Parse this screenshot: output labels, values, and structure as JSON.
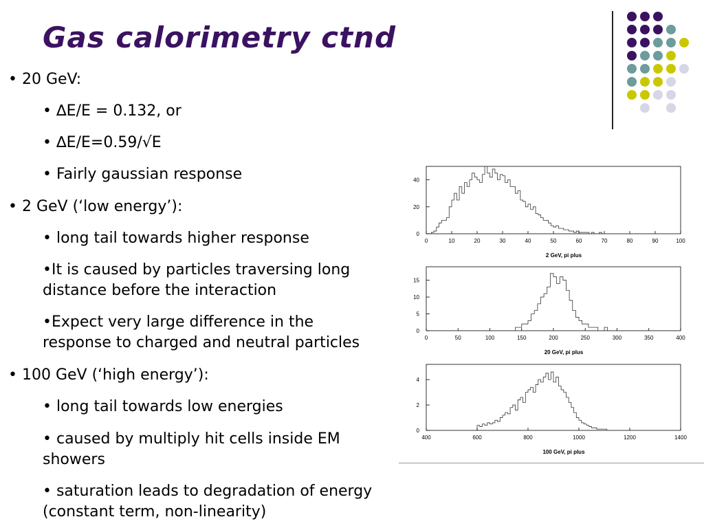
{
  "title": "Gas calorimetry ctnd",
  "colors": {
    "purple": "#3b1261",
    "teal": "#6c9c9c",
    "yellow": "#c9c800",
    "lavender": "#d6d6e6"
  },
  "decor_dots": [
    [
      "purple",
      "purple",
      "purple",
      null,
      null
    ],
    [
      "purple",
      "purple",
      "purple",
      "teal",
      null
    ],
    [
      "purple",
      "purple",
      "teal",
      "teal",
      "yellow"
    ],
    [
      "purple",
      "teal",
      "teal",
      "yellow",
      null
    ],
    [
      "teal",
      "teal",
      "yellow",
      "yellow",
      "lavender"
    ],
    [
      "teal",
      "yellow",
      "yellow",
      "lavender",
      null
    ],
    [
      "yellow",
      "yellow",
      "lavender",
      "lavender",
      null
    ],
    [
      null,
      "lavender",
      null,
      "lavender",
      null
    ]
  ],
  "bullets": [
    {
      "level": 1,
      "text": "• 20 GeV:"
    },
    {
      "level": 2,
      "text": "• ∆E/E = 0.132, or"
    },
    {
      "level": 2,
      "text": "• ∆E/E=0.59/√E"
    },
    {
      "level": 2,
      "text": "• Fairly gaussian response"
    },
    {
      "level": 1,
      "text": "• 2 GeV (‘low energy’):"
    },
    {
      "level": 2,
      "text": "• long tail towards higher response"
    },
    {
      "level": 2,
      "text": "•It is caused by particles traversing long"
    },
    {
      "level": 2,
      "text": "distance before the interaction"
    },
    {
      "level": 2,
      "text": "•Expect very large difference in the"
    },
    {
      "level": 2,
      "text": "response to charged and neutral particles"
    },
    {
      "level": 1,
      "text": "• 100 GeV (‘high energy’):"
    },
    {
      "level": 2,
      "text": "• long tail towards low energies"
    },
    {
      "level": 2,
      "text": "• caused by multiply hit cells inside EM"
    },
    {
      "level": 2,
      "text": "showers"
    },
    {
      "level": 2,
      "text": "• saturation leads to degradation of energy"
    },
    {
      "level": 2,
      "text": "(constant term, non-linearity)"
    }
  ],
  "chart_data": [
    {
      "type": "bar",
      "xlabel": "2 GeV, pi plus",
      "xlim": [
        0,
        100
      ],
      "ylim": [
        0,
        50
      ],
      "xticks": [
        0,
        10,
        20,
        30,
        40,
        50,
        60,
        70,
        80,
        90,
        100
      ],
      "yticks": [
        0,
        20,
        40
      ],
      "bins_start": 0,
      "bin_width": 1,
      "values": [
        0,
        0,
        1,
        2,
        5,
        8,
        10,
        10,
        12,
        20,
        25,
        30,
        25,
        35,
        30,
        38,
        35,
        40,
        45,
        42,
        40,
        38,
        44,
        50,
        45,
        42,
        48,
        45,
        40,
        44,
        43,
        38,
        40,
        35,
        35,
        30,
        32,
        25,
        24,
        20,
        22,
        18,
        20,
        15,
        14,
        12,
        10,
        10,
        8,
        6,
        5,
        6,
        4,
        4,
        3,
        3,
        2,
        2,
        1,
        2,
        1,
        1,
        1,
        1,
        0,
        1,
        0,
        0,
        1,
        0,
        0,
        0,
        0,
        0,
        0,
        0,
        0,
        0,
        0,
        0,
        0,
        0,
        0,
        0,
        0,
        0,
        0,
        0,
        0,
        0,
        0,
        0,
        0,
        0,
        0,
        0,
        0,
        0,
        0,
        0
      ]
    },
    {
      "type": "bar",
      "xlabel": "20 GeV, pi plus",
      "xlim": [
        0,
        400
      ],
      "ylim": [
        0,
        19
      ],
      "xticks": [
        0,
        50,
        100,
        150,
        200,
        250,
        300,
        350,
        400
      ],
      "yticks": [
        0,
        5,
        10,
        15
      ],
      "bins_start": 0,
      "bin_width": 5,
      "values": [
        0,
        0,
        0,
        0,
        0,
        0,
        0,
        0,
        0,
        0,
        0,
        0,
        0,
        0,
        0,
        0,
        0,
        0,
        0,
        0,
        0,
        0,
        0,
        0,
        0,
        0,
        0,
        0,
        1,
        1,
        2,
        2,
        3,
        5,
        6,
        8,
        10,
        11,
        13,
        17,
        16,
        14,
        16,
        15,
        12,
        9,
        6,
        4,
        3,
        2,
        2,
        1,
        1,
        1,
        0,
        0,
        1,
        0,
        0,
        0,
        0,
        0,
        0,
        0,
        0,
        0,
        0,
        0,
        0,
        0,
        0,
        0,
        0,
        0,
        0,
        0,
        0,
        0,
        0,
        0
      ]
    },
    {
      "type": "bar",
      "xlabel": "100 GeV, pi plus",
      "xlim": [
        400,
        1400
      ],
      "ylim": [
        0,
        5.2
      ],
      "xticks": [
        400,
        600,
        800,
        1000,
        1200,
        1400
      ],
      "yticks": [
        0,
        2,
        4
      ],
      "bins_start": 400,
      "bin_width": 10,
      "values": [
        0,
        0,
        0,
        0,
        0,
        0,
        0,
        0,
        0,
        0,
        0,
        0,
        0,
        0,
        0,
        0,
        0,
        0,
        0,
        0,
        0.4,
        0.3,
        0.5,
        0.4,
        0.6,
        0.5,
        0.6,
        0.8,
        0.7,
        1.0,
        1.2,
        1.4,
        1.3,
        1.8,
        2.0,
        1.6,
        2.4,
        2.6,
        2.2,
        3.0,
        3.2,
        3.4,
        3.0,
        3.6,
        4.0,
        3.8,
        4.2,
        4.5,
        4.0,
        4.6,
        3.8,
        4.2,
        3.5,
        3.2,
        3.0,
        2.6,
        2.2,
        1.8,
        1.4,
        1.0,
        0.8,
        0.6,
        0.5,
        0.4,
        0.3,
        0.2,
        0.2,
        0.1,
        0.1,
        0.1,
        0.1,
        0,
        0,
        0,
        0,
        0,
        0,
        0,
        0,
        0,
        0,
        0,
        0,
        0,
        0,
        0,
        0,
        0,
        0,
        0,
        0,
        0,
        0,
        0,
        0,
        0,
        0,
        0,
        0,
        0
      ]
    }
  ]
}
